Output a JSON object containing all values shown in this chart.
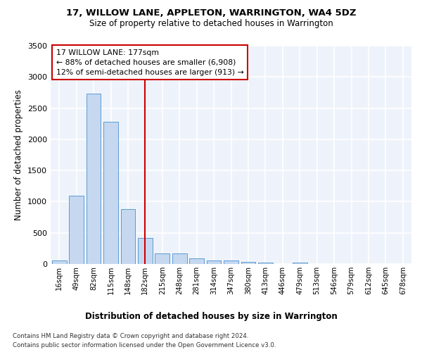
{
  "title": "17, WILLOW LANE, APPLETON, WARRINGTON, WA4 5DZ",
  "subtitle": "Size of property relative to detached houses in Warrington",
  "xlabel": "Distribution of detached houses by size in Warrington",
  "ylabel": "Number of detached properties",
  "bar_color": "#c5d8f0",
  "bar_edge_color": "#5b9bd5",
  "background_color": "#eef3fb",
  "grid_color": "#ffffff",
  "categories": [
    "16sqm",
    "49sqm",
    "82sqm",
    "115sqm",
    "148sqm",
    "182sqm",
    "215sqm",
    "248sqm",
    "281sqm",
    "314sqm",
    "347sqm",
    "380sqm",
    "413sqm",
    "446sqm",
    "479sqm",
    "513sqm",
    "546sqm",
    "579sqm",
    "612sqm",
    "645sqm",
    "678sqm"
  ],
  "values": [
    55,
    1100,
    2730,
    2280,
    880,
    420,
    170,
    165,
    95,
    60,
    55,
    30,
    25,
    0,
    20,
    0,
    0,
    0,
    0,
    0,
    0
  ],
  "ylim": [
    0,
    3500
  ],
  "yticks": [
    0,
    500,
    1000,
    1500,
    2000,
    2500,
    3000,
    3500
  ],
  "property_line_x": 5,
  "property_line_label": "17 WILLOW LANE: 177sqm",
  "annotation_line1": "← 88% of detached houses are smaller (6,908)",
  "annotation_line2": "12% of semi-detached houses are larger (913) →",
  "red_line_color": "#cc0000",
  "footer_line1": "Contains HM Land Registry data © Crown copyright and database right 2024.",
  "footer_line2": "Contains public sector information licensed under the Open Government Licence v3.0."
}
